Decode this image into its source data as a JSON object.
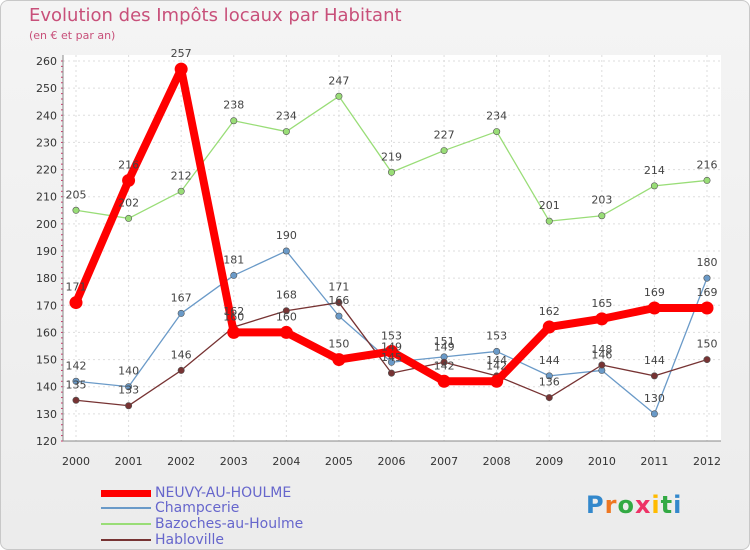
{
  "chart_data": {
    "type": "line",
    "title": "Evolution des Impôts locaux par Habitant",
    "subtitle": "(en € et par an)",
    "xlabel": "",
    "ylabel": "",
    "ylim": [
      120,
      260
    ],
    "yticks": [
      120,
      130,
      140,
      150,
      160,
      170,
      180,
      190,
      200,
      210,
      220,
      230,
      240,
      250,
      260
    ],
    "categories": [
      "2000",
      "2001",
      "2002",
      "2003",
      "2004",
      "2005",
      "2006",
      "2007",
      "2008",
      "2009",
      "2010",
      "2011",
      "2012"
    ],
    "series": [
      {
        "name": "NEUVY-AU-HOULME",
        "color": "#ff0000",
        "values": [
          171,
          216,
          257,
          160,
          160,
          150,
          153,
          142,
          142,
          162,
          165,
          169,
          169
        ]
      },
      {
        "name": "Champcerie",
        "color": "#6a9ac8",
        "values": [
          142,
          140,
          167,
          181,
          190,
          166,
          149,
          151,
          153,
          144,
          146,
          130,
          180
        ]
      },
      {
        "name": "Bazoches-au-Houlme",
        "color": "#99dd77",
        "values": [
          205,
          202,
          212,
          238,
          234,
          247,
          219,
          227,
          234,
          201,
          203,
          214,
          216
        ]
      },
      {
        "name": "Habloville",
        "color": "#773333",
        "values": [
          135,
          133,
          146,
          162,
          168,
          171,
          145,
          149,
          144,
          136,
          148,
          144,
          150
        ]
      }
    ]
  },
  "logo": {
    "text": "Proxiti"
  }
}
